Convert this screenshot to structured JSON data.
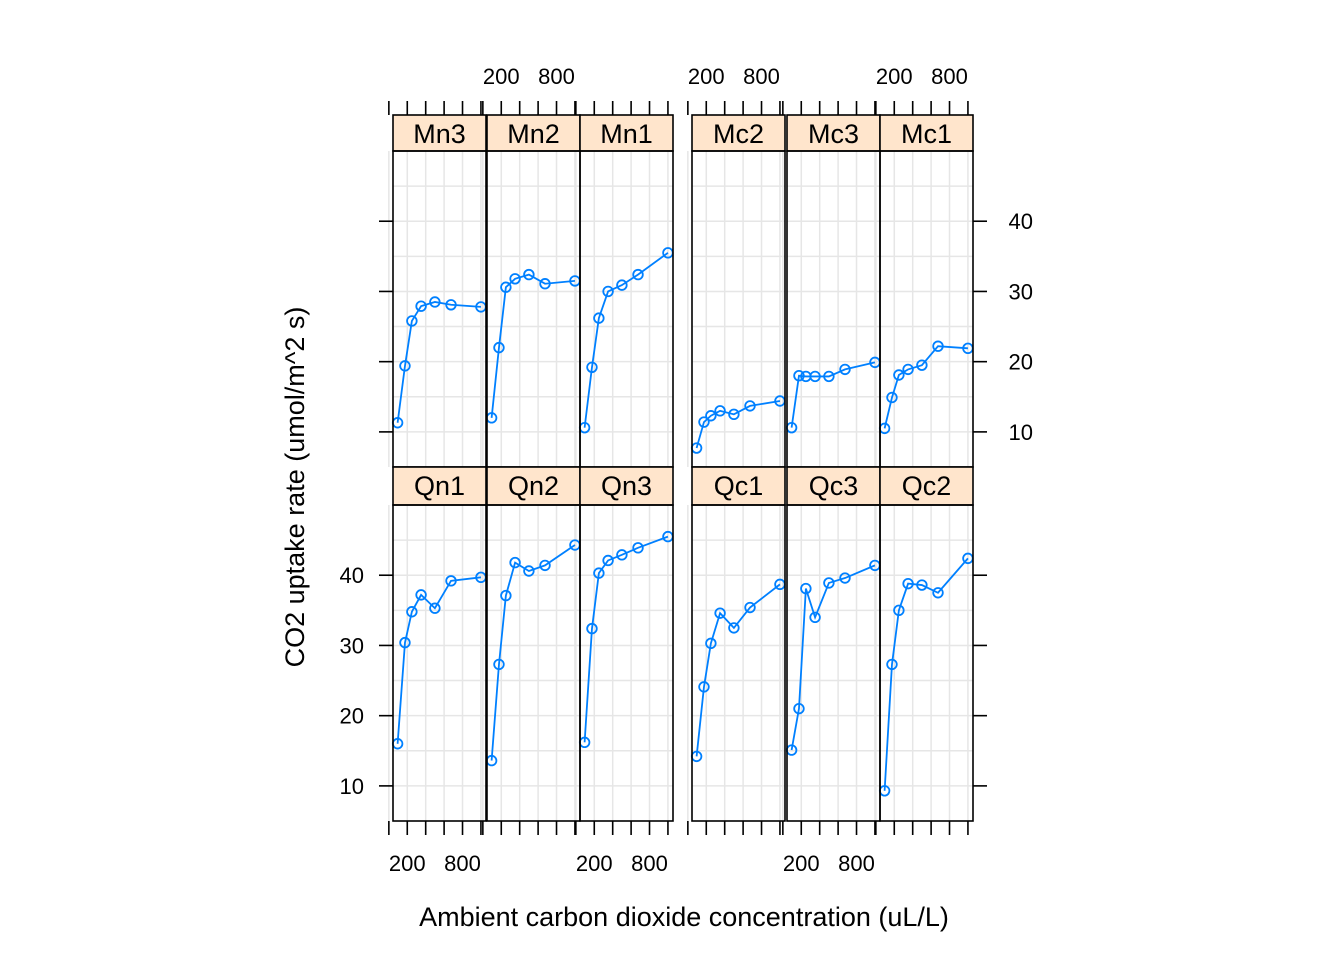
{
  "chart_data": {
    "type": "line",
    "xlabel": "Ambient carbon dioxide concentration (uL/L)",
    "ylabel": "CO2 uptake rate (umol/m^2 s)",
    "xlim": [
      45,
      1055
    ],
    "ylim": [
      5,
      50
    ],
    "x_ticks": [
      200,
      800
    ],
    "x_minor_ticks": [
      0,
      200,
      400,
      600,
      800,
      1000
    ],
    "y_ticks": [
      10,
      20,
      30,
      40
    ],
    "grid": true,
    "colors": {
      "series": "#0080ff",
      "strip": "#ffe5cc",
      "grid": "#e6e6e6"
    },
    "x": [
      95,
      175,
      250,
      350,
      500,
      675,
      1000
    ],
    "layout": {
      "rows": 2,
      "groups": 2,
      "cols_per_group": 3
    },
    "panels": [
      {
        "name": "Mn3",
        "row": 0,
        "col": 0,
        "values": [
          11.3,
          19.4,
          25.8,
          27.9,
          28.5,
          28.1,
          27.8
        ]
      },
      {
        "name": "Mn2",
        "row": 0,
        "col": 1,
        "values": [
          12.0,
          22.0,
          30.6,
          31.8,
          32.4,
          31.1,
          31.5
        ]
      },
      {
        "name": "Mn1",
        "row": 0,
        "col": 2,
        "values": [
          10.6,
          19.2,
          26.2,
          30.0,
          30.9,
          32.4,
          35.5
        ]
      },
      {
        "name": "Mc2",
        "row": 0,
        "col": 3,
        "values": [
          7.7,
          11.4,
          12.3,
          13.0,
          12.5,
          13.7,
          14.4
        ]
      },
      {
        "name": "Mc3",
        "row": 0,
        "col": 4,
        "values": [
          10.6,
          18.0,
          17.9,
          17.9,
          17.9,
          18.9,
          19.9
        ]
      },
      {
        "name": "Mc1",
        "row": 0,
        "col": 5,
        "values": [
          10.5,
          14.9,
          18.1,
          18.9,
          19.5,
          22.2,
          21.9
        ]
      },
      {
        "name": "Qn1",
        "row": 1,
        "col": 0,
        "values": [
          16.0,
          30.4,
          34.8,
          37.2,
          35.3,
          39.2,
          39.7
        ]
      },
      {
        "name": "Qn2",
        "row": 1,
        "col": 1,
        "values": [
          13.6,
          27.3,
          37.1,
          41.8,
          40.6,
          41.4,
          44.3
        ]
      },
      {
        "name": "Qn3",
        "row": 1,
        "col": 2,
        "values": [
          16.2,
          32.4,
          40.3,
          42.1,
          42.9,
          43.9,
          45.5
        ]
      },
      {
        "name": "Qc1",
        "row": 1,
        "col": 3,
        "values": [
          14.2,
          24.1,
          30.3,
          34.6,
          32.5,
          35.4,
          38.7
        ]
      },
      {
        "name": "Qc3",
        "row": 1,
        "col": 4,
        "values": [
          15.1,
          21.0,
          38.1,
          34.0,
          38.9,
          39.6,
          41.4
        ]
      },
      {
        "name": "Qc2",
        "row": 1,
        "col": 5,
        "values": [
          9.3,
          27.3,
          35.0,
          38.8,
          38.6,
          37.5,
          42.4
        ]
      }
    ]
  }
}
